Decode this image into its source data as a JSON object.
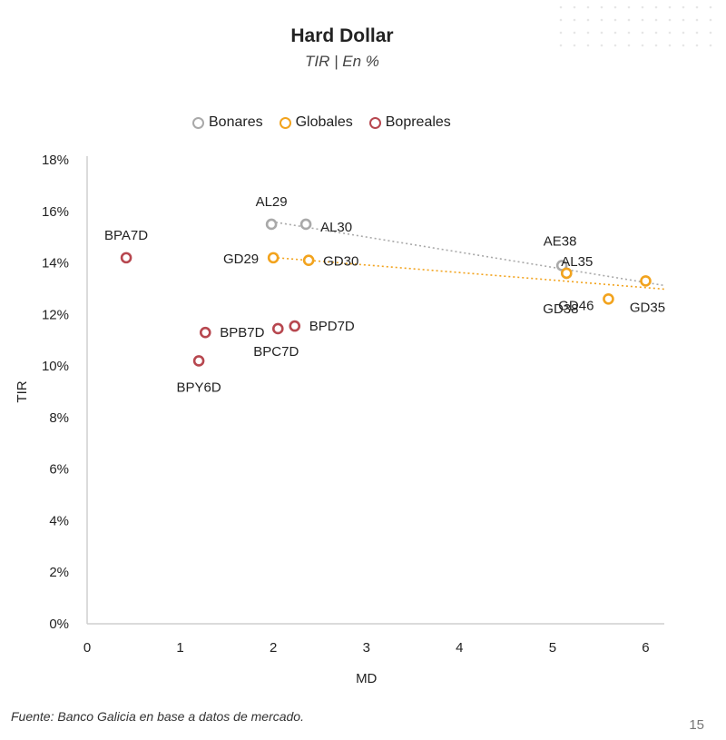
{
  "header": {
    "title": "Hard Dollar",
    "subtitle": "TIR | En %"
  },
  "chart_data": {
    "type": "scatter",
    "xlabel": "MD",
    "ylabel": "TIR",
    "xlim": [
      0,
      6.2
    ],
    "ylim": [
      0,
      18
    ],
    "xticks": [
      0,
      1,
      2,
      3,
      4,
      5,
      6
    ],
    "yticks": [
      0,
      2,
      4,
      6,
      8,
      10,
      12,
      14,
      16,
      18
    ],
    "ytick_suffix": "%",
    "grid": false,
    "legend_placement": "top",
    "series": [
      {
        "name": "Bonares",
        "color": "#a9a9a9",
        "trendline": true,
        "points": [
          {
            "label": "AL29",
            "x": 1.98,
            "y": 15.5
          },
          {
            "label": "AL30",
            "x": 2.35,
            "y": 15.5
          },
          {
            "label": "AE38",
            "x": 5.1,
            "y": 13.9
          },
          {
            "label": "AL35",
            "x": 5.15,
            "y": 13.6
          }
        ]
      },
      {
        "name": "Globales",
        "color": "#f2a31d",
        "trendline": true,
        "points": [
          {
            "label": "GD29",
            "x": 2.0,
            "y": 14.2
          },
          {
            "label": "GD30",
            "x": 2.38,
            "y": 14.1
          },
          {
            "label": "GD38",
            "x": 5.15,
            "y": 13.6
          },
          {
            "label": "GD46",
            "x": 5.6,
            "y": 12.6
          },
          {
            "label": "GD35",
            "x": 6.0,
            "y": 13.3
          }
        ]
      },
      {
        "name": "Bopreales",
        "color": "#b7474f",
        "trendline": false,
        "points": [
          {
            "label": "BPA7D",
            "x": 0.42,
            "y": 14.2
          },
          {
            "label": "BPB7D",
            "x": 1.27,
            "y": 11.3
          },
          {
            "label": "BPC7D",
            "x": 2.05,
            "y": 11.45
          },
          {
            "label": "BPD7D",
            "x": 2.23,
            "y": 11.55
          },
          {
            "label": "BPY6D",
            "x": 1.2,
            "y": 10.2
          }
        ]
      }
    ]
  },
  "footer": {
    "source": "Fuente: Banco Galicia en base a datos de mercado.",
    "page_number": "15"
  }
}
